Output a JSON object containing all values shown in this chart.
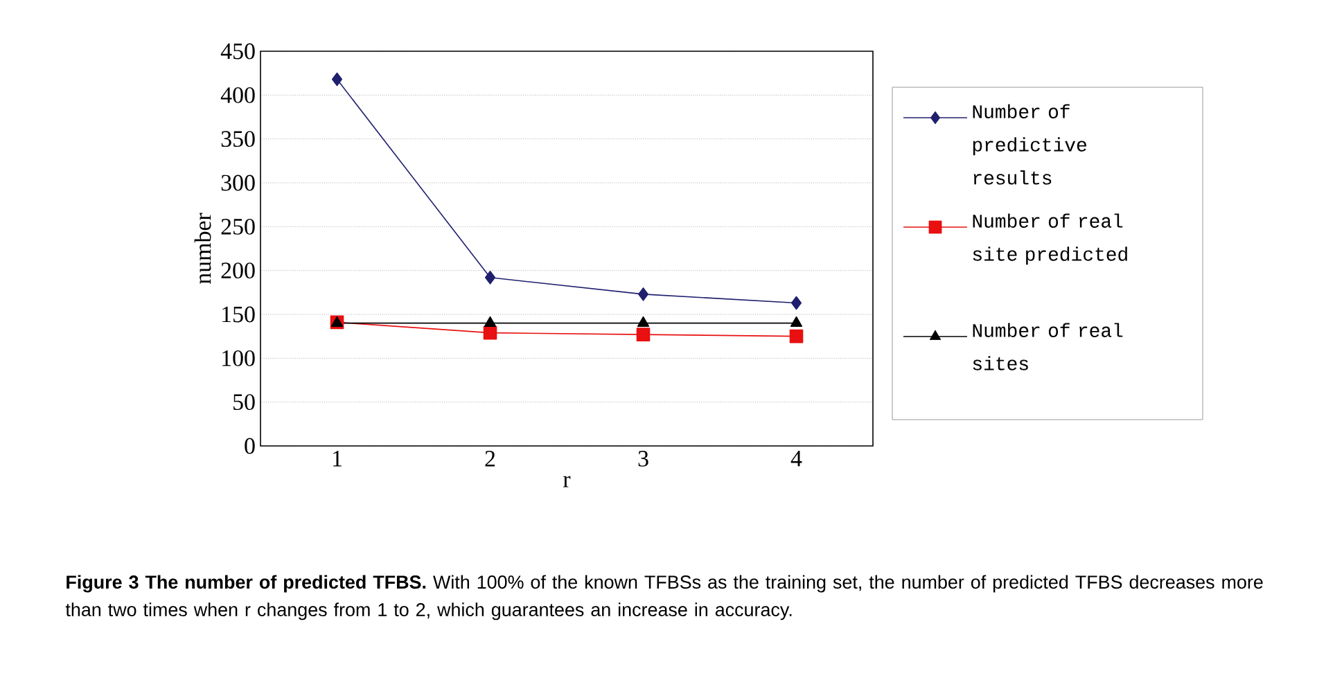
{
  "chart_data": {
    "type": "line",
    "xlabel": "r",
    "ylabel": "number",
    "categories": [
      "1",
      "2",
      "3",
      "4"
    ],
    "series": [
      {
        "name": "Number of predictive results",
        "color": "#1f1f6e",
        "marker": "diamond",
        "values": [
          418,
          192,
          173,
          163
        ]
      },
      {
        "name": "Number of real site predicted",
        "color": "#e81010",
        "marker": "square",
        "values": [
          141,
          129,
          127,
          125
        ]
      },
      {
        "name": "Number of real sites",
        "color": "#000000",
        "marker": "triangle",
        "values": [
          140,
          140,
          140,
          140
        ]
      }
    ],
    "ylim": [
      0,
      450
    ],
    "yticks": [
      0,
      50,
      100,
      150,
      200,
      250,
      300,
      350,
      400,
      450
    ],
    "grid": "y",
    "legend": "right",
    "line_style": "solid",
    "annotations": [
      "**Figure 3 The number of predicted TFBS.** With 100% of the known TFBSs as the training set, the number of predicted TFBS decreases more than two times when r changes from 1 to 2, which guarantees an increase in accuracy."
    ]
  }
}
